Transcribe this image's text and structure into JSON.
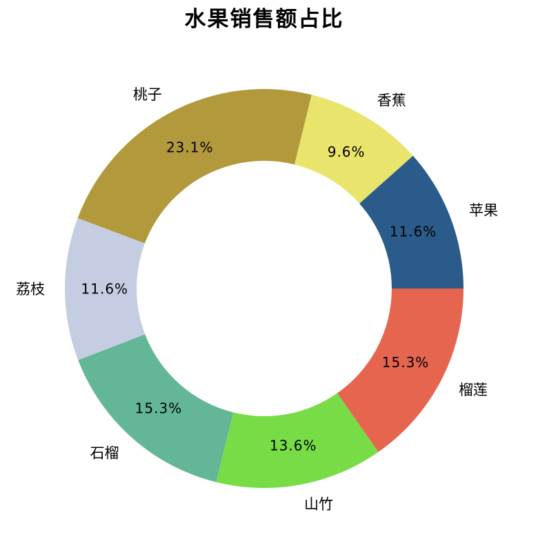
{
  "chart_data": {
    "type": "pie",
    "subtype": "donut",
    "title": "水果销售额占比",
    "categories": [
      "苹果",
      "香蕉",
      "桃子",
      "荔枝",
      "石榴",
      "山竹",
      "榴莲"
    ],
    "values": [
      11.6,
      9.6,
      23.1,
      11.6,
      15.3,
      13.6,
      15.3
    ],
    "percent_labels": [
      "11.6%",
      "9.6%",
      "23.1%",
      "11.6%",
      "15.3%",
      "13.6%",
      "15.3%"
    ],
    "colors": [
      "#2b5b8a",
      "#e8e46c",
      "#b2993b",
      "#c4cde2",
      "#63b796",
      "#78dc46",
      "#e5654f"
    ],
    "start_angle_deg": 0,
    "direction": "counterclockwise",
    "inner_radius_ratio": 0.64,
    "label_distance_ratio": 1.1,
    "pct_distance_ratio": 0.8,
    "background_color": "#ffffff",
    "text_color": "#000000",
    "legend_position": "none",
    "grid": "off"
  }
}
